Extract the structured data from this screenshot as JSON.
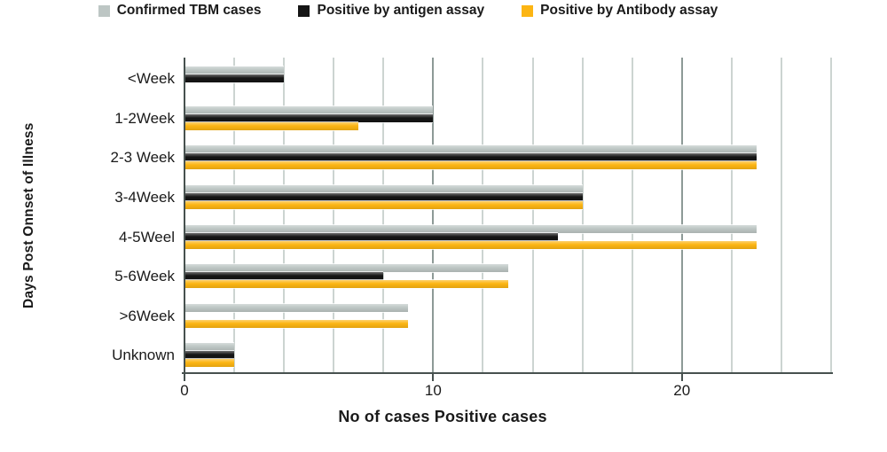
{
  "chart_data": {
    "type": "bar",
    "orientation": "horizontal",
    "title": "",
    "xlabel": "No of cases Positive cases",
    "ylabel": "Days Post Onnset of Illness",
    "categories": [
      "<Week",
      "1-2Week",
      "2-3 Week",
      "3-4Week",
      "4-5Weel",
      "5-6Week",
      ">6Week",
      "Unknown"
    ],
    "series": [
      {
        "name": "Confirmed TBM cases",
        "color": "#bdc6c4",
        "values": [
          4,
          10,
          23,
          16,
          23,
          13,
          9,
          2
        ]
      },
      {
        "name": "Positive by antigen assay",
        "color": "#151515",
        "values": [
          4,
          10,
          23,
          16,
          15,
          8,
          0,
          2
        ]
      },
      {
        "name": "Positive by Antibody assay",
        "color": "#fcb513",
        "values": [
          0,
          7,
          23,
          16,
          23,
          13,
          9,
          2
        ]
      }
    ],
    "xlim": [
      0,
      26
    ],
    "xticks": [
      0,
      10,
      20
    ],
    "xtick_labels": [
      "0",
      "10",
      "20"
    ],
    "minor_grid_step": 2,
    "grid": true,
    "legend_position": "top",
    "colors": {
      "grid_minor": "#ccd4d1",
      "grid_major": "#8d9a97",
      "axis": "#47514f",
      "text": "#1a1a1a",
      "background": "#ffffff"
    }
  }
}
